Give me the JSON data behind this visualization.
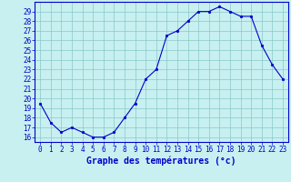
{
  "hours": [
    0,
    1,
    2,
    3,
    4,
    5,
    6,
    7,
    8,
    9,
    10,
    11,
    12,
    13,
    14,
    15,
    16,
    17,
    18,
    19,
    20,
    21,
    22,
    23
  ],
  "temps": [
    19.5,
    17.5,
    16.5,
    17.0,
    16.5,
    16.0,
    16.0,
    16.5,
    18.0,
    19.5,
    22.0,
    23.0,
    26.5,
    27.0,
    28.0,
    29.0,
    29.0,
    29.5,
    29.0,
    28.5,
    28.5,
    25.5,
    23.5,
    22.0
  ],
  "line_color": "#0000cc",
  "marker_color": "#0000cc",
  "bg_color": "#c8f0f0",
  "grid_color": "#88c8c8",
  "axis_label_color": "#0000cc",
  "xlabel": "Graphe des températures (°c)",
  "ylim": [
    15.5,
    30.0
  ],
  "yticks": [
    16,
    17,
    18,
    19,
    20,
    21,
    22,
    23,
    24,
    25,
    26,
    27,
    28,
    29
  ],
  "tick_fontsize": 5.5,
  "label_fontsize": 7.0
}
